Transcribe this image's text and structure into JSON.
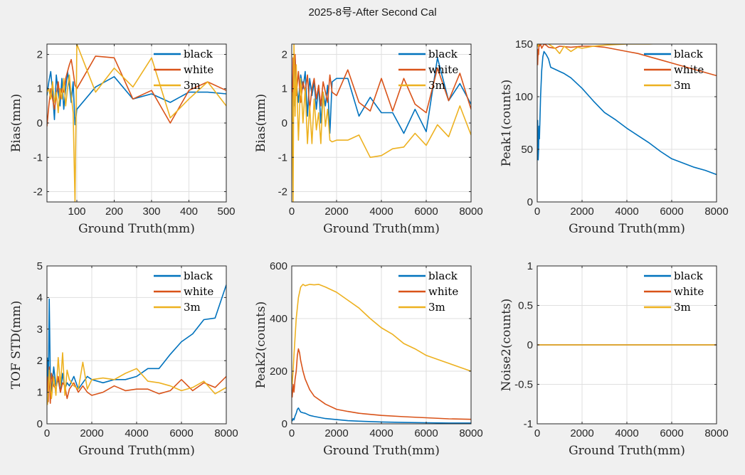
{
  "figure_title": "2025-8号-After Second Cal",
  "colors": {
    "black": "#0072BD",
    "white": "#D95319",
    "3m": "#EDB120"
  },
  "chart_data": [
    {
      "type": "line",
      "xlabel": "Ground Truth(mm)",
      "ylabel": "Bias(mm)",
      "xlim": [
        20,
        500
      ],
      "ylim": [
        -2.3,
        2.3
      ],
      "xticks": [
        100,
        200,
        300,
        400,
        500
      ],
      "yticks": [
        -2,
        -1,
        0,
        1,
        2
      ],
      "grid": true,
      "legend": "top-right",
      "series": [
        {
          "name": "black",
          "x": [
            20,
            25,
            30,
            35,
            40,
            45,
            50,
            55,
            60,
            65,
            70,
            75,
            80,
            85,
            90,
            95,
            100,
            150,
            200,
            250,
            300,
            350,
            400,
            450,
            500
          ],
          "y": [
            0.8,
            1.2,
            1.5,
            0.9,
            0.1,
            1.4,
            0.9,
            0.5,
            1.3,
            0.4,
            1.0,
            1.5,
            1.1,
            0.6,
            1.2,
            -0.05,
            0.4,
            1.05,
            1.35,
            0.7,
            0.85,
            0.6,
            0.9,
            0.9,
            0.85
          ]
        },
        {
          "name": "white",
          "x": [
            20,
            25,
            30,
            35,
            40,
            45,
            50,
            55,
            60,
            65,
            70,
            75,
            80,
            85,
            90,
            95,
            100,
            150,
            200,
            250,
            300,
            350,
            400,
            450,
            500
          ],
          "y": [
            -0.1,
            0.5,
            1.0,
            0.7,
            0.4,
            0.8,
            1.2,
            0.7,
            1.0,
            0.9,
            1.3,
            1.5,
            1.7,
            1.85,
            1.5,
            1.1,
            1.0,
            1.95,
            1.9,
            0.7,
            0.95,
            0.0,
            0.95,
            1.2,
            0.95
          ]
        },
        {
          "name": "3m",
          "x": [
            20,
            25,
            30,
            35,
            40,
            45,
            50,
            55,
            60,
            65,
            70,
            75,
            80,
            85,
            90,
            95,
            100,
            150,
            200,
            250,
            300,
            350,
            400,
            450,
            500
          ],
          "y": [
            0.9,
            1.0,
            0.7,
            1.2,
            0.6,
            0.9,
            0.3,
            1.0,
            0.7,
            1.3,
            0.5,
            1.0,
            1.4,
            0.8,
            0.3,
            -2.3,
            2.3,
            0.9,
            1.6,
            1.05,
            1.9,
            0.15,
            0.7,
            1.2,
            0.5
          ]
        }
      ]
    },
    {
      "type": "line",
      "xlabel": "Ground Truth(mm)",
      "ylabel": "Bias(mm)",
      "xlim": [
        0,
        8000
      ],
      "ylim": [
        -2.3,
        2.3
      ],
      "xticks": [
        0,
        2000,
        4000,
        6000,
        8000
      ],
      "yticks": [
        -2,
        -1,
        0,
        1,
        2
      ],
      "grid": true,
      "legend": "top-right",
      "series": [
        {
          "name": "black",
          "x": [
            20,
            60,
            100,
            150,
            200,
            300,
            400,
            500,
            600,
            700,
            800,
            900,
            1000,
            1100,
            1200,
            1300,
            1400,
            1500,
            1600,
            1700,
            1800,
            2000,
            2500,
            3000,
            3500,
            4000,
            4500,
            5000,
            5500,
            6000,
            6500,
            7000,
            7500,
            8000
          ],
          "y": [
            0.8,
            1.5,
            0.5,
            1.9,
            1.2,
            0.6,
            1.4,
            1.0,
            1.5,
            0.2,
            1.3,
            0.8,
            1.2,
            0.4,
            1.1,
            0.0,
            0.9,
            0.5,
            1.1,
            -0.3,
            1.2,
            1.3,
            1.3,
            0.2,
            0.75,
            0.3,
            0.3,
            -0.3,
            0.4,
            -0.25,
            1.9,
            0.65,
            1.15,
            0.55
          ]
        },
        {
          "name": "white",
          "x": [
            20,
            60,
            100,
            150,
            200,
            300,
            400,
            500,
            600,
            700,
            800,
            900,
            1000,
            1100,
            1200,
            1300,
            1400,
            1500,
            1600,
            1700,
            1800,
            2000,
            2500,
            3000,
            3500,
            4000,
            4500,
            5000,
            5500,
            6000,
            6500,
            7000,
            7500,
            8000
          ],
          "y": [
            -0.1,
            1.9,
            1.3,
            2.0,
            0.8,
            1.5,
            0.6,
            1.2,
            0.9,
            1.4,
            0.4,
            1.0,
            1.3,
            0.7,
            1.1,
            0.5,
            1.2,
            0.9,
            0.6,
            1.4,
            0.9,
            0.8,
            1.55,
            0.6,
            0.35,
            1.3,
            0.35,
            1.3,
            0.55,
            0.3,
            1.6,
            0.65,
            1.45,
            0.4
          ]
        },
        {
          "name": "3m",
          "x": [
            20,
            60,
            100,
            150,
            200,
            300,
            400,
            500,
            600,
            700,
            800,
            900,
            1000,
            1100,
            1200,
            1300,
            1400,
            1500,
            1600,
            1700,
            1800,
            2000,
            2500,
            3000,
            3500,
            4000,
            4500,
            5000,
            5500,
            6000,
            6500,
            7000,
            7500,
            8000
          ],
          "y": [
            0.9,
            -2.3,
            2.3,
            0.2,
            1.7,
            -0.5,
            1.3,
            0.0,
            1.0,
            -0.6,
            0.5,
            -0.6,
            0.7,
            -0.2,
            0.3,
            -0.6,
            0.9,
            -0.1,
            0.4,
            -0.5,
            -0.55,
            -0.5,
            -0.5,
            -0.35,
            -1.0,
            -0.95,
            -0.75,
            -0.7,
            -0.3,
            -0.65,
            -0.05,
            -0.4,
            0.5,
            -0.35
          ]
        }
      ]
    },
    {
      "type": "line",
      "xlabel": "Ground Truth(mm)",
      "ylabel": "Peak1(counts)",
      "xlim": [
        0,
        8000
      ],
      "ylim": [
        0,
        150
      ],
      "xticks": [
        0,
        2000,
        4000,
        6000,
        8000
      ],
      "yticks": [
        0,
        50,
        100,
        150
      ],
      "grid": true,
      "legend": "top-right",
      "series": [
        {
          "name": "black",
          "x": [
            20,
            40,
            60,
            80,
            100,
            150,
            200,
            250,
            300,
            400,
            500,
            600,
            800,
            1000,
            1200,
            1500,
            2000,
            2500,
            3000,
            3500,
            4000,
            4500,
            5000,
            5500,
            6000,
            6500,
            7000,
            7500,
            8000
          ],
          "y": [
            78,
            40,
            50,
            72,
            60,
            100,
            125,
            138,
            143,
            140,
            136,
            128,
            126,
            124,
            122,
            118,
            108,
            96,
            85,
            78,
            70,
            63,
            56,
            48,
            41,
            37,
            33,
            30,
            26
          ]
        },
        {
          "name": "white",
          "x": [
            20,
            40,
            60,
            80,
            100,
            150,
            200,
            300,
            400,
            500,
            800,
            1000,
            1500,
            2000,
            2500,
            3000,
            3500,
            4000,
            4500,
            5000,
            5500,
            6000,
            6500,
            7000,
            7500,
            8000
          ],
          "y": [
            130,
            145,
            140,
            150,
            148,
            150,
            146,
            150,
            149,
            147,
            146,
            148,
            147,
            148,
            148,
            147,
            145,
            143,
            141,
            138,
            135,
            132,
            129,
            126,
            123,
            120
          ]
        },
        {
          "name": "3m",
          "x": [
            20,
            40,
            60,
            80,
            100,
            200,
            300,
            500,
            800,
            1000,
            1200,
            1500,
            1800,
            2000,
            2500,
            3000,
            4000,
            5000,
            6000,
            7000,
            8000
          ],
          "y": [
            150,
            148,
            150,
            150,
            151,
            151,
            152,
            150,
            146,
            141,
            148,
            143,
            147,
            146,
            148,
            149,
            150,
            150,
            151,
            151,
            151
          ]
        }
      ]
    },
    {
      "type": "line",
      "xlabel": "Ground Truth(mm)",
      "ylabel": "TOF STD(mm)",
      "xlim": [
        0,
        8000
      ],
      "ylim": [
        0,
        5
      ],
      "xticks": [
        0,
        2000,
        4000,
        6000,
        8000
      ],
      "yticks": [
        0,
        1,
        2,
        3,
        4,
        5
      ],
      "grid": true,
      "legend": "top-right",
      "series": [
        {
          "name": "black",
          "x": [
            20,
            60,
            100,
            150,
            200,
            300,
            400,
            500,
            600,
            700,
            800,
            900,
            1000,
            1200,
            1400,
            1600,
            1800,
            2000,
            2500,
            3000,
            3500,
            4000,
            4500,
            5000,
            5500,
            6000,
            6500,
            7000,
            7500,
            8000
          ],
          "y": [
            2.1,
            1.0,
            3.95,
            1.5,
            1.0,
            1.8,
            1.2,
            1.4,
            1.0,
            1.6,
            1.1,
            1.3,
            1.2,
            1.5,
            1.1,
            1.3,
            1.5,
            1.4,
            1.3,
            1.4,
            1.4,
            1.5,
            1.75,
            1.75,
            2.2,
            2.6,
            2.85,
            3.3,
            3.35,
            4.4
          ]
        },
        {
          "name": "white",
          "x": [
            20,
            60,
            100,
            150,
            200,
            300,
            400,
            500,
            600,
            700,
            800,
            900,
            1000,
            1200,
            1400,
            1600,
            1800,
            2000,
            2500,
            3000,
            3500,
            4000,
            4500,
            5000,
            5500,
            6000,
            6500,
            7000,
            7500,
            8000
          ],
          "y": [
            1.5,
            0.7,
            1.8,
            0.65,
            1.6,
            1.2,
            1.1,
            1.5,
            1.0,
            1.3,
            1.2,
            0.8,
            1.1,
            1.3,
            1.0,
            1.2,
            1.0,
            0.9,
            1.0,
            1.2,
            1.05,
            1.1,
            1.1,
            0.95,
            1.05,
            1.4,
            1.05,
            1.3,
            1.15,
            1.5
          ]
        },
        {
          "name": "3m",
          "x": [
            20,
            60,
            100,
            150,
            200,
            300,
            400,
            500,
            600,
            700,
            800,
            900,
            1000,
            1200,
            1400,
            1600,
            1800,
            2000,
            2500,
            3000,
            3500,
            4000,
            4500,
            5000,
            5500,
            6000,
            6500,
            7000,
            7500,
            8000
          ],
          "y": [
            0.6,
            1.0,
            1.7,
            1.2,
            0.8,
            1.5,
            0.9,
            2.1,
            1.2,
            2.25,
            0.9,
            1.7,
            1.4,
            1.2,
            1.1,
            1.95,
            1.1,
            1.4,
            1.45,
            1.4,
            1.6,
            1.75,
            1.35,
            1.3,
            1.2,
            1.05,
            1.15,
            1.35,
            0.95,
            1.15
          ]
        }
      ]
    },
    {
      "type": "line",
      "xlabel": "Ground Truth(mm)",
      "ylabel": "Peak2(counts)",
      "xlim": [
        0,
        8000
      ],
      "ylim": [
        0,
        600
      ],
      "xticks": [
        0,
        2000,
        4000,
        6000,
        8000
      ],
      "yticks": [
        0,
        200,
        400,
        600
      ],
      "grid": true,
      "legend": "top-right",
      "series": [
        {
          "name": "black",
          "x": [
            20,
            60,
            100,
            150,
            200,
            250,
            300,
            350,
            400,
            500,
            600,
            800,
            1000,
            1500,
            2000,
            2500,
            3000,
            4000,
            5000,
            6000,
            7000,
            8000
          ],
          "y": [
            10,
            20,
            15,
            30,
            40,
            55,
            60,
            52,
            45,
            42,
            40,
            32,
            28,
            20,
            16,
            12,
            10,
            7,
            5,
            4,
            3,
            3
          ]
        },
        {
          "name": "white",
          "x": [
            20,
            60,
            100,
            150,
            200,
            250,
            300,
            350,
            400,
            500,
            600,
            800,
            1000,
            1500,
            2000,
            2500,
            3000,
            4000,
            5000,
            6000,
            7000,
            8000
          ],
          "y": [
            100,
            150,
            120,
            170,
            200,
            260,
            285,
            270,
            240,
            200,
            170,
            130,
            105,
            75,
            55,
            47,
            40,
            32,
            27,
            23,
            19,
            17
          ]
        },
        {
          "name": "3m",
          "x": [
            20,
            60,
            100,
            150,
            200,
            300,
            400,
            500,
            600,
            800,
            1000,
            1200,
            1500,
            2000,
            2500,
            3000,
            3500,
            4000,
            4500,
            5000,
            5500,
            6000,
            6500,
            7000,
            7500,
            8000
          ],
          "y": [
            150,
            200,
            260,
            330,
            400,
            480,
            520,
            530,
            525,
            530,
            528,
            530,
            520,
            500,
            470,
            440,
            400,
            365,
            340,
            305,
            285,
            260,
            245,
            230,
            215,
            200
          ]
        }
      ]
    },
    {
      "type": "line",
      "xlabel": "Ground Truth(mm)",
      "ylabel": "Noise2(counts)",
      "xlim": [
        0,
        8000
      ],
      "ylim": [
        -1,
        1
      ],
      "xticks": [
        0,
        2000,
        4000,
        6000,
        8000
      ],
      "yticks": [
        -1,
        -0.5,
        0,
        0.5,
        1
      ],
      "grid": true,
      "legend": "top-right",
      "series": [
        {
          "name": "black",
          "x": [
            0,
            8000
          ],
          "y": [
            0,
            0
          ]
        },
        {
          "name": "white",
          "x": [
            0,
            8000
          ],
          "y": [
            0,
            0
          ]
        },
        {
          "name": "3m",
          "x": [
            0,
            8000
          ],
          "y": [
            0,
            0
          ]
        }
      ]
    }
  ]
}
